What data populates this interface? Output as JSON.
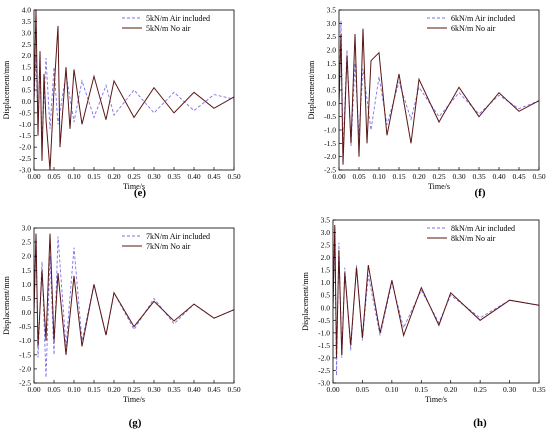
{
  "colors": {
    "air": "#7c73e6",
    "noair": "#5a1616",
    "axis": "#000000"
  },
  "chart_data": [
    {
      "type": "line",
      "panel_label": "(e)",
      "xlabel": "Time/s",
      "ylabel": "Displacement/mm",
      "xlim": [
        0,
        0.5
      ],
      "ylim": [
        -3.0,
        4.0
      ],
      "xticks": [
        0.0,
        0.05,
        0.1,
        0.15,
        0.2,
        0.25,
        0.3,
        0.35,
        0.4,
        0.45,
        0.5
      ],
      "xtick_labels": [
        "0.00",
        "0.05",
        "0.10",
        "0.15",
        "0.20",
        "0.25",
        "0.30",
        "0.35",
        "0.40",
        "0.45",
        "0.50"
      ],
      "yticks": [
        -3.0,
        -2.5,
        -2.0,
        -1.5,
        -1.0,
        -0.5,
        0.0,
        0.5,
        1.0,
        1.5,
        2.0,
        2.5,
        3.0,
        3.5,
        4.0
      ],
      "ytick_labels": [
        "-3.0",
        "-2.5",
        "-2.0",
        "-1.5",
        "-1.0",
        "-0.5",
        "0.0",
        "0.5",
        "1.0",
        "1.5",
        "2.0",
        "2.5",
        "3.0",
        "3.5",
        "4.0"
      ],
      "legend_position": "top-right",
      "series": [
        {
          "name": "5kN/m Air included",
          "style": "dashed",
          "x": [
            0,
            0.005,
            0.01,
            0.015,
            0.02,
            0.03,
            0.04,
            0.05,
            0.06,
            0.08,
            0.1,
            0.12,
            0.15,
            0.18,
            0.2,
            0.25,
            0.3,
            0.35,
            0.4,
            0.45,
            0.5
          ],
          "y": [
            0,
            2.0,
            -1.0,
            1.6,
            -1.8,
            1.9,
            -1.2,
            1.5,
            -1.0,
            1.2,
            -0.9,
            0.9,
            -0.7,
            0.7,
            -0.6,
            0.5,
            -0.5,
            0.4,
            -0.4,
            0.3,
            0.1
          ]
        },
        {
          "name": "5kN/m No air",
          "style": "solid",
          "x": [
            0,
            0.005,
            0.01,
            0.015,
            0.02,
            0.025,
            0.03,
            0.04,
            0.05,
            0.06,
            0.065,
            0.08,
            0.09,
            0.1,
            0.12,
            0.15,
            0.18,
            0.2,
            0.25,
            0.3,
            0.35,
            0.4,
            0.45,
            0.5
          ],
          "y": [
            0,
            4.0,
            -1.5,
            2.2,
            -2.6,
            1.2,
            -0.8,
            -3.0,
            0.5,
            3.3,
            -2.0,
            1.5,
            -1.2,
            1.4,
            -1.0,
            1.1,
            -0.8,
            0.9,
            -0.7,
            0.6,
            -0.5,
            0.4,
            -0.3,
            0.2
          ]
        }
      ]
    },
    {
      "type": "line",
      "panel_label": "(f)",
      "xlabel": "Time/s",
      "ylabel": "Displacement/mm",
      "xlim": [
        0,
        0.5
      ],
      "ylim": [
        -2.5,
        3.5
      ],
      "xticks": [
        0.0,
        0.05,
        0.1,
        0.15,
        0.2,
        0.25,
        0.3,
        0.35,
        0.4,
        0.45,
        0.5
      ],
      "xtick_labels": [
        "0.00",
        "0.05",
        "0.10",
        "0.15",
        "0.20",
        "0.25",
        "0.30",
        "0.35",
        "0.40",
        "0.45",
        "0.50"
      ],
      "yticks": [
        -2.5,
        -2.0,
        -1.5,
        -1.0,
        -0.5,
        0.0,
        0.5,
        1.0,
        1.5,
        2.0,
        2.5,
        3.0,
        3.5
      ],
      "ytick_labels": [
        "-2.5",
        "-2.0",
        "-1.5",
        "-1.0",
        "-0.5",
        "0.0",
        "0.5",
        "1.0",
        "1.5",
        "2.0",
        "2.5",
        "3.0",
        "3.5"
      ],
      "legend_position": "top-right",
      "series": [
        {
          "name": "6kN/m Air included",
          "style": "dashed",
          "x": [
            0,
            0.005,
            0.01,
            0.02,
            0.03,
            0.04,
            0.05,
            0.06,
            0.08,
            0.1,
            0.12,
            0.15,
            0.18,
            0.2,
            0.25,
            0.3,
            0.35,
            0.4,
            0.45,
            0.5
          ],
          "y": [
            0,
            3.1,
            -1.8,
            2.0,
            -1.6,
            1.5,
            -1.2,
            1.3,
            -1.0,
            1.0,
            -0.8,
            0.8,
            -0.6,
            0.6,
            -0.5,
            0.4,
            -0.4,
            0.3,
            -0.2,
            0.1
          ]
        },
        {
          "name": "6kN/m No air",
          "style": "solid",
          "x": [
            0,
            0.005,
            0.01,
            0.02,
            0.03,
            0.04,
            0.05,
            0.06,
            0.07,
            0.08,
            0.1,
            0.12,
            0.15,
            0.18,
            0.2,
            0.25,
            0.3,
            0.35,
            0.4,
            0.45,
            0.5
          ],
          "y": [
            0,
            2.6,
            -2.3,
            1.8,
            -1.5,
            2.6,
            -2.0,
            2.8,
            -1.5,
            1.6,
            1.9,
            -1.2,
            1.1,
            -1.5,
            0.9,
            -0.7,
            0.6,
            -0.5,
            0.4,
            -0.3,
            0.1
          ]
        }
      ]
    },
    {
      "type": "line",
      "panel_label": "(g)",
      "xlabel": "Time/s",
      "ylabel": "Displacement/mm",
      "xlim": [
        0,
        0.5
      ],
      "ylim": [
        -2.5,
        3.0
      ],
      "xticks": [
        0.0,
        0.05,
        0.1,
        0.15,
        0.2,
        0.25,
        0.3,
        0.35,
        0.4,
        0.45,
        0.5
      ],
      "xtick_labels": [
        "0.00",
        "0.05",
        "0.10",
        "0.15",
        "0.20",
        "0.25",
        "0.30",
        "0.35",
        "0.40",
        "0.45",
        "0.50"
      ],
      "yticks": [
        -2.5,
        -2.0,
        -1.5,
        -1.0,
        -0.5,
        0.0,
        0.5,
        1.0,
        1.5,
        2.0,
        2.5,
        3.0
      ],
      "ytick_labels": [
        "-2.5",
        "-2.0",
        "-1.5",
        "-1.0",
        "-0.5",
        "0.0",
        "0.5",
        "1.0",
        "1.5",
        "2.0",
        "2.5",
        "3.0"
      ],
      "legend_position": "top-right",
      "series": [
        {
          "name": "7kN/m Air included",
          "style": "dashed",
          "x": [
            0,
            0.005,
            0.01,
            0.02,
            0.03,
            0.04,
            0.05,
            0.06,
            0.08,
            0.1,
            0.12,
            0.15,
            0.18,
            0.2,
            0.25,
            0.3,
            0.35,
            0.4,
            0.45,
            0.5
          ],
          "y": [
            0,
            2.7,
            -1.6,
            1.8,
            -2.3,
            2.0,
            -1.5,
            2.7,
            -1.2,
            2.3,
            -1.0,
            1.0,
            -0.8,
            0.7,
            -0.6,
            0.5,
            -0.4,
            0.3,
            -0.2,
            0.1
          ]
        },
        {
          "name": "7kN/m No air",
          "style": "solid",
          "x": [
            0,
            0.005,
            0.01,
            0.02,
            0.03,
            0.04,
            0.05,
            0.06,
            0.08,
            0.1,
            0.12,
            0.15,
            0.18,
            0.2,
            0.25,
            0.3,
            0.35,
            0.4,
            0.45,
            0.5
          ],
          "y": [
            0,
            2.8,
            -1.2,
            1.5,
            -1.0,
            2.8,
            -1.0,
            1.4,
            -1.5,
            1.3,
            -1.2,
            1.0,
            -0.8,
            0.7,
            -0.5,
            0.4,
            -0.3,
            0.3,
            -0.2,
            0.1
          ]
        }
      ]
    },
    {
      "type": "line",
      "panel_label": "(h)",
      "xlabel": "Time/s",
      "ylabel": "Displacement/mm",
      "xlim": [
        0,
        0.35
      ],
      "ylim": [
        -3.0,
        3.5
      ],
      "xticks": [
        0.0,
        0.05,
        0.1,
        0.15,
        0.2,
        0.25,
        0.3,
        0.35
      ],
      "xtick_labels": [
        "0.00",
        "0.05",
        "0.10",
        "0.15",
        "0.20",
        "0.25",
        "0.30",
        "0.35"
      ],
      "yticks": [
        -3.0,
        -2.5,
        -2.0,
        -1.5,
        -1.0,
        -0.5,
        0.0,
        0.5,
        1.0,
        1.5,
        2.0,
        2.5,
        3.0,
        3.5
      ],
      "ytick_labels": [
        "-3.0",
        "-2.5",
        "-2.0",
        "-1.5",
        "-1.0",
        "-0.5",
        "0.0",
        "0.5",
        "1.0",
        "1.5",
        "2.0",
        "2.5",
        "3.0",
        "3.5"
      ],
      "legend_position": "top-right",
      "series": [
        {
          "name": "8kN/m Air included",
          "style": "dashed",
          "x": [
            0,
            0.003,
            0.006,
            0.01,
            0.015,
            0.02,
            0.03,
            0.04,
            0.05,
            0.06,
            0.08,
            0.1,
            0.12,
            0.15,
            0.18,
            0.2,
            0.25,
            0.3,
            0.35
          ],
          "y": [
            0,
            3.2,
            -2.7,
            2.6,
            -2.0,
            1.6,
            -1.7,
            1.7,
            -1.3,
            1.3,
            -1.1,
            1.0,
            -0.8,
            0.7,
            -0.6,
            0.5,
            -0.4,
            0.3,
            0.1
          ]
        },
        {
          "name": "8kN/m No air",
          "style": "solid",
          "x": [
            0,
            0.003,
            0.006,
            0.01,
            0.015,
            0.02,
            0.03,
            0.04,
            0.05,
            0.06,
            0.08,
            0.1,
            0.12,
            0.15,
            0.18,
            0.2,
            0.25,
            0.3,
            0.35
          ],
          "y": [
            0,
            3.3,
            -2.0,
            2.3,
            -1.9,
            1.4,
            -1.5,
            1.6,
            -1.2,
            1.7,
            -1.0,
            1.1,
            -1.1,
            0.8,
            -0.7,
            0.6,
            -0.5,
            0.3,
            0.1
          ]
        }
      ]
    }
  ]
}
